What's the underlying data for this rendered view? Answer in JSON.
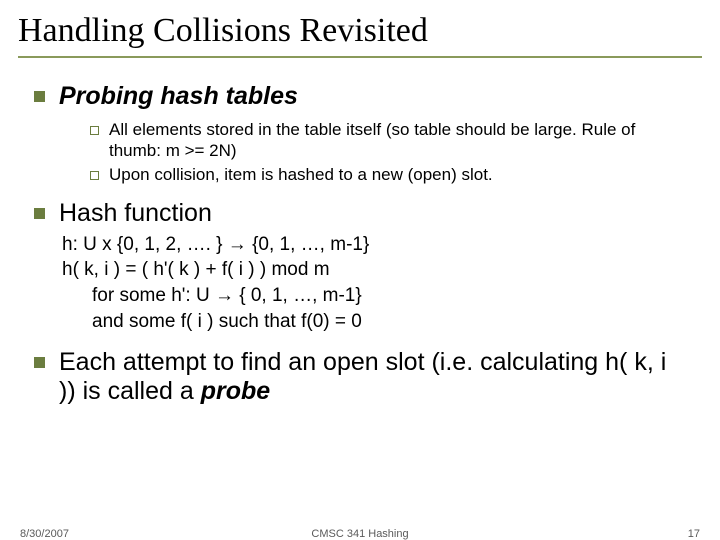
{
  "colors": {
    "rule": "#8a9a5b",
    "l1_bullet": "#6b7d3f",
    "l2_bullet": "#6b7d3f",
    "text": "#000000",
    "footer": "#5a5a5a",
    "background": "#ffffff"
  },
  "title": "Handling Collisions Revisited",
  "sections": [
    {
      "heading": "Probing hash tables",
      "heading_style": "italic-bold",
      "bullets": [
        "All elements stored in the table itself (so table should be large. Rule of thumb: m >= 2N)",
        "Upon collision, item is hashed to a new (open) slot."
      ]
    },
    {
      "heading": "Hash function",
      "heading_style": "normal",
      "lines": [
        "h: U x {0, 1, 2, …. } → {0, 1, …, m-1}",
        "h( k, i ) = ( h'( k ) + f( i ) ) mod m",
        "for some h':  U → { 0, 1, …, m-1}",
        "and some f( i ) such that f(0) = 0"
      ]
    },
    {
      "heading_parts": {
        "pre": "Each attempt to find an open slot (i.e. calculating h( k, i )) is called a ",
        "em": "probe"
      }
    }
  ],
  "footer": {
    "date": "8/30/2007",
    "course": "CMSC 341 Hashing",
    "page": "17"
  },
  "typography": {
    "title_fontsize": 34,
    "l1_fontsize": 25,
    "l2_fontsize": 17,
    "body_fontsize": 19,
    "footer_fontsize": 11,
    "title_font": "Times New Roman",
    "body_font": "Arial"
  }
}
